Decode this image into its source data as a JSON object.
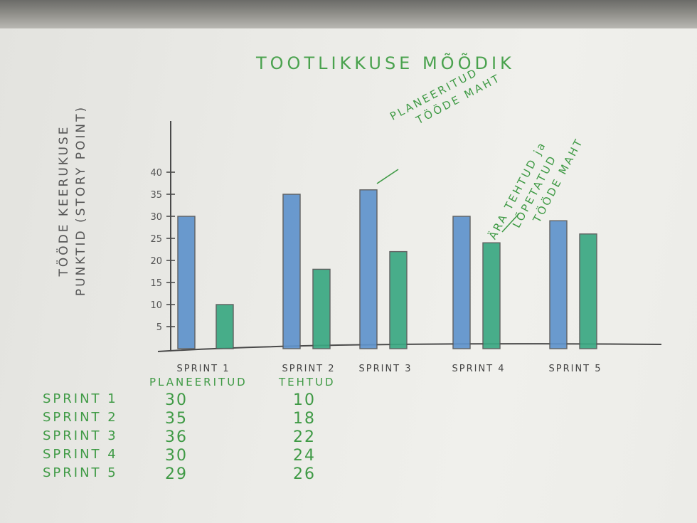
{
  "chart_data": {
    "type": "bar",
    "title": "TOOTLIKKUSE MÕÕDIK",
    "ylabel_line1": "TÖÖDE KEERUKUSE",
    "ylabel_line2": "PUNKTID (STORY POINT)",
    "categories": [
      "SPRINT 1",
      "SPRINT 2",
      "SPRINT 3",
      "SPRINT 4",
      "SPRINT 5"
    ],
    "series": [
      {
        "name": "PLANEERITUD",
        "values": [
          30,
          35,
          36,
          30,
          29
        ],
        "color": "#5f93cc"
      },
      {
        "name": "TEHTUD",
        "values": [
          10,
          18,
          22,
          24,
          26
        ],
        "color": "#3aa882"
      }
    ],
    "yticks": [
      "5",
      "10",
      "15",
      "20",
      "25",
      "30",
      "35",
      "40"
    ],
    "ylim": [
      0,
      45
    ],
    "annotations": [
      {
        "lines": [
          "PLANEERITUD",
          "TÖÖDE MAHT"
        ],
        "target": "SPRINT 3 PLANEERITUD"
      },
      {
        "lines": [
          "ÄRA TEHTUD ja",
          "LÕPETATUD",
          "TÖÖDE MAHT"
        ],
        "target": "SPRINT 4 TEHTUD"
      }
    ],
    "grid": false
  },
  "table": {
    "col_planned": "PLANEERITUD",
    "col_done": "TEHTUD",
    "rows": [
      {
        "label": "SPRINT 1",
        "planned": "30",
        "done": "10"
      },
      {
        "label": "SPRINT 2",
        "planned": "35",
        "done": "18"
      },
      {
        "label": "SPRINT 3",
        "planned": "36",
        "done": "22"
      },
      {
        "label": "SPRINT 4",
        "planned": "30",
        "done": "24"
      },
      {
        "label": "SPRINT 5",
        "planned": "29",
        "done": "26"
      }
    ]
  }
}
